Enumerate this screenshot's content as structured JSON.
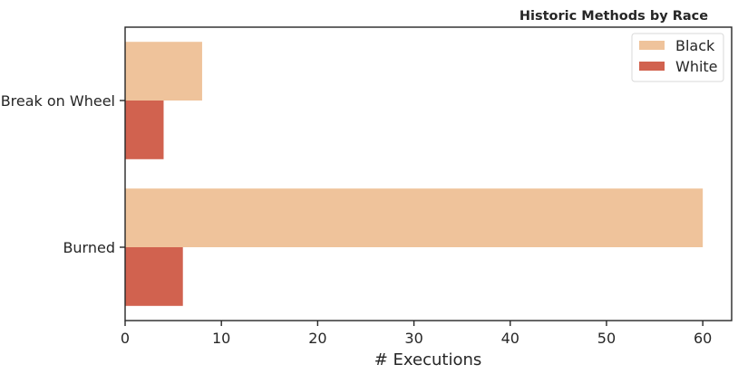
{
  "chart_data": {
    "type": "bar",
    "orientation": "horizontal",
    "title": "Historic Methods by Race",
    "xlabel": "# Executions",
    "ylabel": "",
    "xlim": [
      0,
      63
    ],
    "xticks": [
      0,
      10,
      20,
      30,
      40,
      50,
      60
    ],
    "categories": [
      "Break on Wheel",
      "Burned"
    ],
    "series": [
      {
        "name": "Black",
        "color": "#efc39b",
        "values": [
          8,
          60
        ]
      },
      {
        "name": "White",
        "color": "#d1624f",
        "values": [
          4,
          6
        ]
      }
    ],
    "legend_position": "top-right",
    "grid": false
  }
}
